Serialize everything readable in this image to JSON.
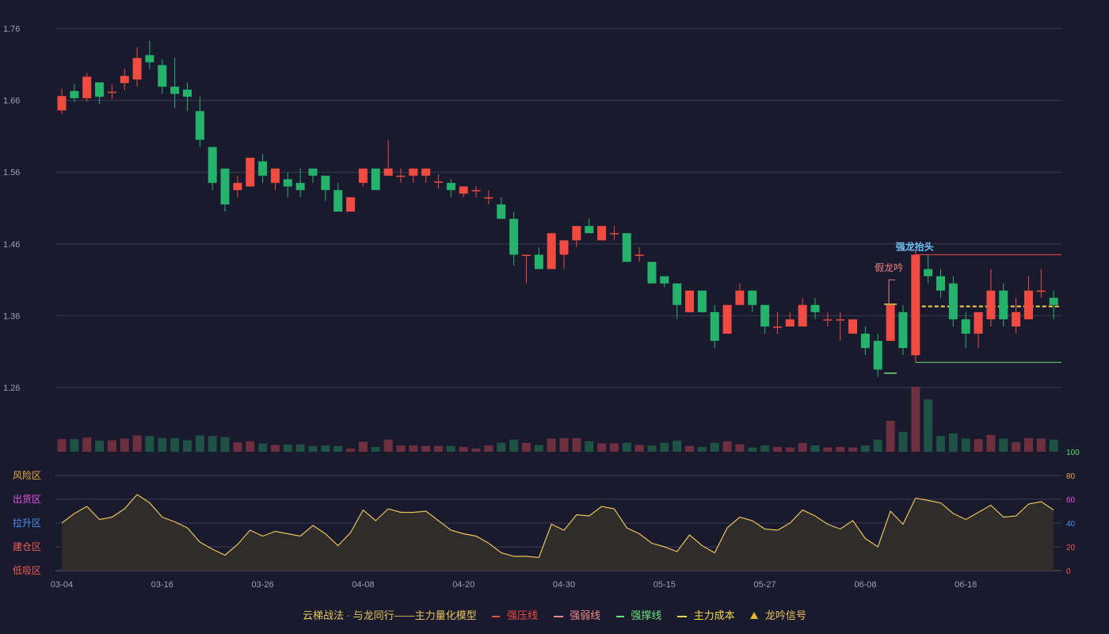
{
  "chart_data": {
    "type": "candlestick",
    "x_ticks": [
      "03-04",
      "03-16",
      "03-26",
      "04-08",
      "04-20",
      "04-30",
      "05-15",
      "05-27",
      "06-08",
      "06-18"
    ],
    "y_ticks": [
      "1.76",
      "1.66",
      "1.56",
      "1.46",
      "1.36",
      "1.26"
    ],
    "ylim": [
      1.22,
      1.78
    ],
    "candles": [
      [
        1.646,
        1.666,
        1.641,
        1.676
      ],
      [
        1.673,
        1.663,
        1.658,
        1.683
      ],
      [
        1.663,
        1.693,
        1.658,
        1.698
      ],
      [
        1.685,
        1.665,
        1.655,
        1.685
      ],
      [
        1.672,
        1.672,
        1.662,
        1.682
      ],
      [
        1.684,
        1.694,
        1.674,
        1.704
      ],
      [
        1.689,
        1.719,
        1.679,
        1.734
      ],
      [
        1.723,
        1.713,
        1.703,
        1.743
      ],
      [
        1.709,
        1.679,
        1.669,
        1.717
      ],
      [
        1.679,
        1.669,
        1.649,
        1.719
      ],
      [
        1.675,
        1.665,
        1.645,
        1.685
      ],
      [
        1.645,
        1.605,
        1.595,
        1.665
      ],
      [
        1.595,
        1.545,
        1.535,
        1.595
      ],
      [
        1.565,
        1.515,
        1.505,
        1.565
      ],
      [
        1.535,
        1.545,
        1.525,
        1.555
      ],
      [
        1.54,
        1.58,
        1.54,
        1.58
      ],
      [
        1.575,
        1.555,
        1.545,
        1.585
      ],
      [
        1.545,
        1.565,
        1.535,
        1.565
      ],
      [
        1.55,
        1.54,
        1.525,
        1.56
      ],
      [
        1.545,
        1.535,
        1.525,
        1.565
      ],
      [
        1.565,
        1.555,
        1.545,
        1.565
      ],
      [
        1.555,
        1.535,
        1.52,
        1.555
      ],
      [
        1.535,
        1.505,
        1.505,
        1.545
      ],
      [
        1.505,
        1.525,
        1.505,
        1.525
      ],
      [
        1.545,
        1.565,
        1.54,
        1.565
      ],
      [
        1.565,
        1.535,
        1.535,
        1.565
      ],
      [
        1.555,
        1.565,
        1.555,
        1.605
      ],
      [
        1.555,
        1.555,
        1.545,
        1.565
      ],
      [
        1.555,
        1.565,
        1.545,
        1.565
      ],
      [
        1.555,
        1.565,
        1.545,
        1.565
      ],
      [
        1.547,
        1.547,
        1.537,
        1.557
      ],
      [
        1.545,
        1.535,
        1.525,
        1.55
      ],
      [
        1.53,
        1.54,
        1.525,
        1.54
      ],
      [
        1.535,
        1.535,
        1.525,
        1.54
      ],
      [
        1.525,
        1.525,
        1.515,
        1.535
      ],
      [
        1.515,
        1.495,
        1.495,
        1.525
      ],
      [
        1.495,
        1.445,
        1.43,
        1.505
      ],
      [
        1.445,
        1.445,
        1.405,
        1.445
      ],
      [
        1.445,
        1.425,
        1.425,
        1.455
      ],
      [
        1.425,
        1.475,
        1.425,
        1.475
      ],
      [
        1.445,
        1.465,
        1.425,
        1.465
      ],
      [
        1.465,
        1.485,
        1.455,
        1.485
      ],
      [
        1.485,
        1.475,
        1.475,
        1.495
      ],
      [
        1.465,
        1.485,
        1.465,
        1.485
      ],
      [
        1.475,
        1.475,
        1.465,
        1.485
      ],
      [
        1.475,
        1.435,
        1.435,
        1.475
      ],
      [
        1.445,
        1.445,
        1.435,
        1.455
      ],
      [
        1.435,
        1.405,
        1.405,
        1.435
      ],
      [
        1.415,
        1.405,
        1.4,
        1.415
      ],
      [
        1.405,
        1.375,
        1.355,
        1.405
      ],
      [
        1.365,
        1.395,
        1.365,
        1.395
      ],
      [
        1.395,
        1.365,
        1.365,
        1.395
      ],
      [
        1.365,
        1.325,
        1.315,
        1.375
      ],
      [
        1.335,
        1.375,
        1.335,
        1.375
      ],
      [
        1.375,
        1.395,
        1.375,
        1.405
      ],
      [
        1.395,
        1.375,
        1.365,
        1.395
      ],
      [
        1.375,
        1.345,
        1.335,
        1.375
      ],
      [
        1.345,
        1.345,
        1.335,
        1.365
      ],
      [
        1.345,
        1.355,
        1.345,
        1.365
      ],
      [
        1.345,
        1.375,
        1.345,
        1.385
      ],
      [
        1.375,
        1.365,
        1.355,
        1.385
      ],
      [
        1.355,
        1.355,
        1.345,
        1.365
      ],
      [
        1.355,
        1.355,
        1.325,
        1.365
      ],
      [
        1.335,
        1.355,
        1.335,
        1.355
      ],
      [
        1.335,
        1.315,
        1.305,
        1.345
      ],
      [
        1.325,
        1.285,
        1.275,
        1.335
      ],
      [
        1.325,
        1.375,
        1.325,
        1.375
      ],
      [
        1.365,
        1.315,
        1.305,
        1.375
      ],
      [
        1.305,
        1.445,
        1.295,
        1.45
      ],
      [
        1.425,
        1.415,
        1.405,
        1.445
      ],
      [
        1.415,
        1.395,
        1.385,
        1.425
      ],
      [
        1.405,
        1.355,
        1.345,
        1.415
      ],
      [
        1.355,
        1.335,
        1.315,
        1.365
      ],
      [
        1.335,
        1.365,
        1.315,
        1.365
      ],
      [
        1.355,
        1.395,
        1.345,
        1.425
      ],
      [
        1.395,
        1.355,
        1.345,
        1.405
      ],
      [
        1.345,
        1.365,
        1.335,
        1.385
      ],
      [
        1.355,
        1.395,
        1.355,
        1.415
      ],
      [
        1.395,
        1.395,
        1.385,
        1.425
      ],
      [
        1.385,
        1.375,
        1.355,
        1.395
      ]
    ],
    "volumes": [
      24,
      24,
      27,
      21,
      22,
      25,
      31,
      30,
      26,
      26,
      22,
      31,
      30,
      28,
      18,
      20,
      16,
      13,
      14,
      14,
      11,
      12,
      11,
      6,
      19,
      9,
      23,
      12,
      12,
      11,
      11,
      11,
      9,
      6,
      12,
      17,
      23,
      17,
      13,
      25,
      26,
      26,
      20,
      16,
      16,
      17,
      13,
      12,
      17,
      21,
      11,
      9,
      17,
      20,
      14,
      8,
      12,
      9,
      8,
      17,
      12,
      8,
      9,
      8,
      12,
      23,
      59,
      38,
      124,
      100,
      30,
      35,
      25,
      24,
      32,
      25,
      18,
      26,
      25,
      23
    ],
    "indicator": [
      40,
      48,
      54,
      43,
      45,
      52,
      64,
      57,
      45,
      41,
      36,
      24,
      18,
      13,
      22,
      34,
      29,
      33,
      31,
      29,
      38,
      31,
      21,
      32,
      51,
      42,
      52,
      49,
      49,
      50,
      42,
      34,
      31,
      29,
      23,
      15,
      12,
      12,
      11,
      39,
      34,
      47,
      46,
      54,
      52,
      36,
      31,
      23,
      20,
      16,
      30,
      21,
      15,
      36,
      45,
      42,
      35,
      34,
      40,
      51,
      46,
      39,
      35,
      42,
      27,
      20,
      50,
      39,
      61,
      59,
      57,
      48,
      43,
      49,
      55,
      45,
      46,
      56,
      58,
      51
    ],
    "indicator_y_ticks": [
      "100",
      "80",
      "60",
      "40",
      "20",
      "0"
    ],
    "indicator_zones": [
      "风险区",
      "出货区",
      "拉升区",
      "建仓区",
      "低吸区"
    ],
    "colors": {
      "up": "#f04b40",
      "down": "#25b36b",
      "vol_up": "#6e2f3e",
      "vol_down": "#1d5245",
      "indicator": "#e7c35a",
      "pressure": "#f04b40",
      "support": "#6fe07a",
      "cost": "#f5d84a",
      "zone_risk": "#e9a93a",
      "zone_sell": "#e454e6",
      "zone_rise": "#4c8ff0",
      "zone_build": "#f05a5a",
      "zone_low": "#f05a5a"
    },
    "annotations": [
      {
        "label": "强龙抬头",
        "color": "#6ec4f5"
      },
      {
        "label": "假龙吟",
        "color": "#f08080"
      }
    ],
    "levels": {
      "pressure": 1.445,
      "support": 1.295,
      "cost": 1.373
    },
    "legend": [
      {
        "label": "云梯战法 · 与龙同行——主力量化模型",
        "style": "text",
        "color": "#e7c35a"
      },
      {
        "label": "强压线",
        "style": "line",
        "color": "#f04b40"
      },
      {
        "label": "强弱线",
        "style": "dash",
        "color": "#f08a8a"
      },
      {
        "label": "强撑线",
        "style": "line",
        "color": "#6fe07a"
      },
      {
        "label": "主力成本",
        "style": "dash",
        "color": "#f5d84a"
      },
      {
        "label": "龙吟信号",
        "style": "triangle",
        "color": "#e7b33a"
      }
    ]
  }
}
